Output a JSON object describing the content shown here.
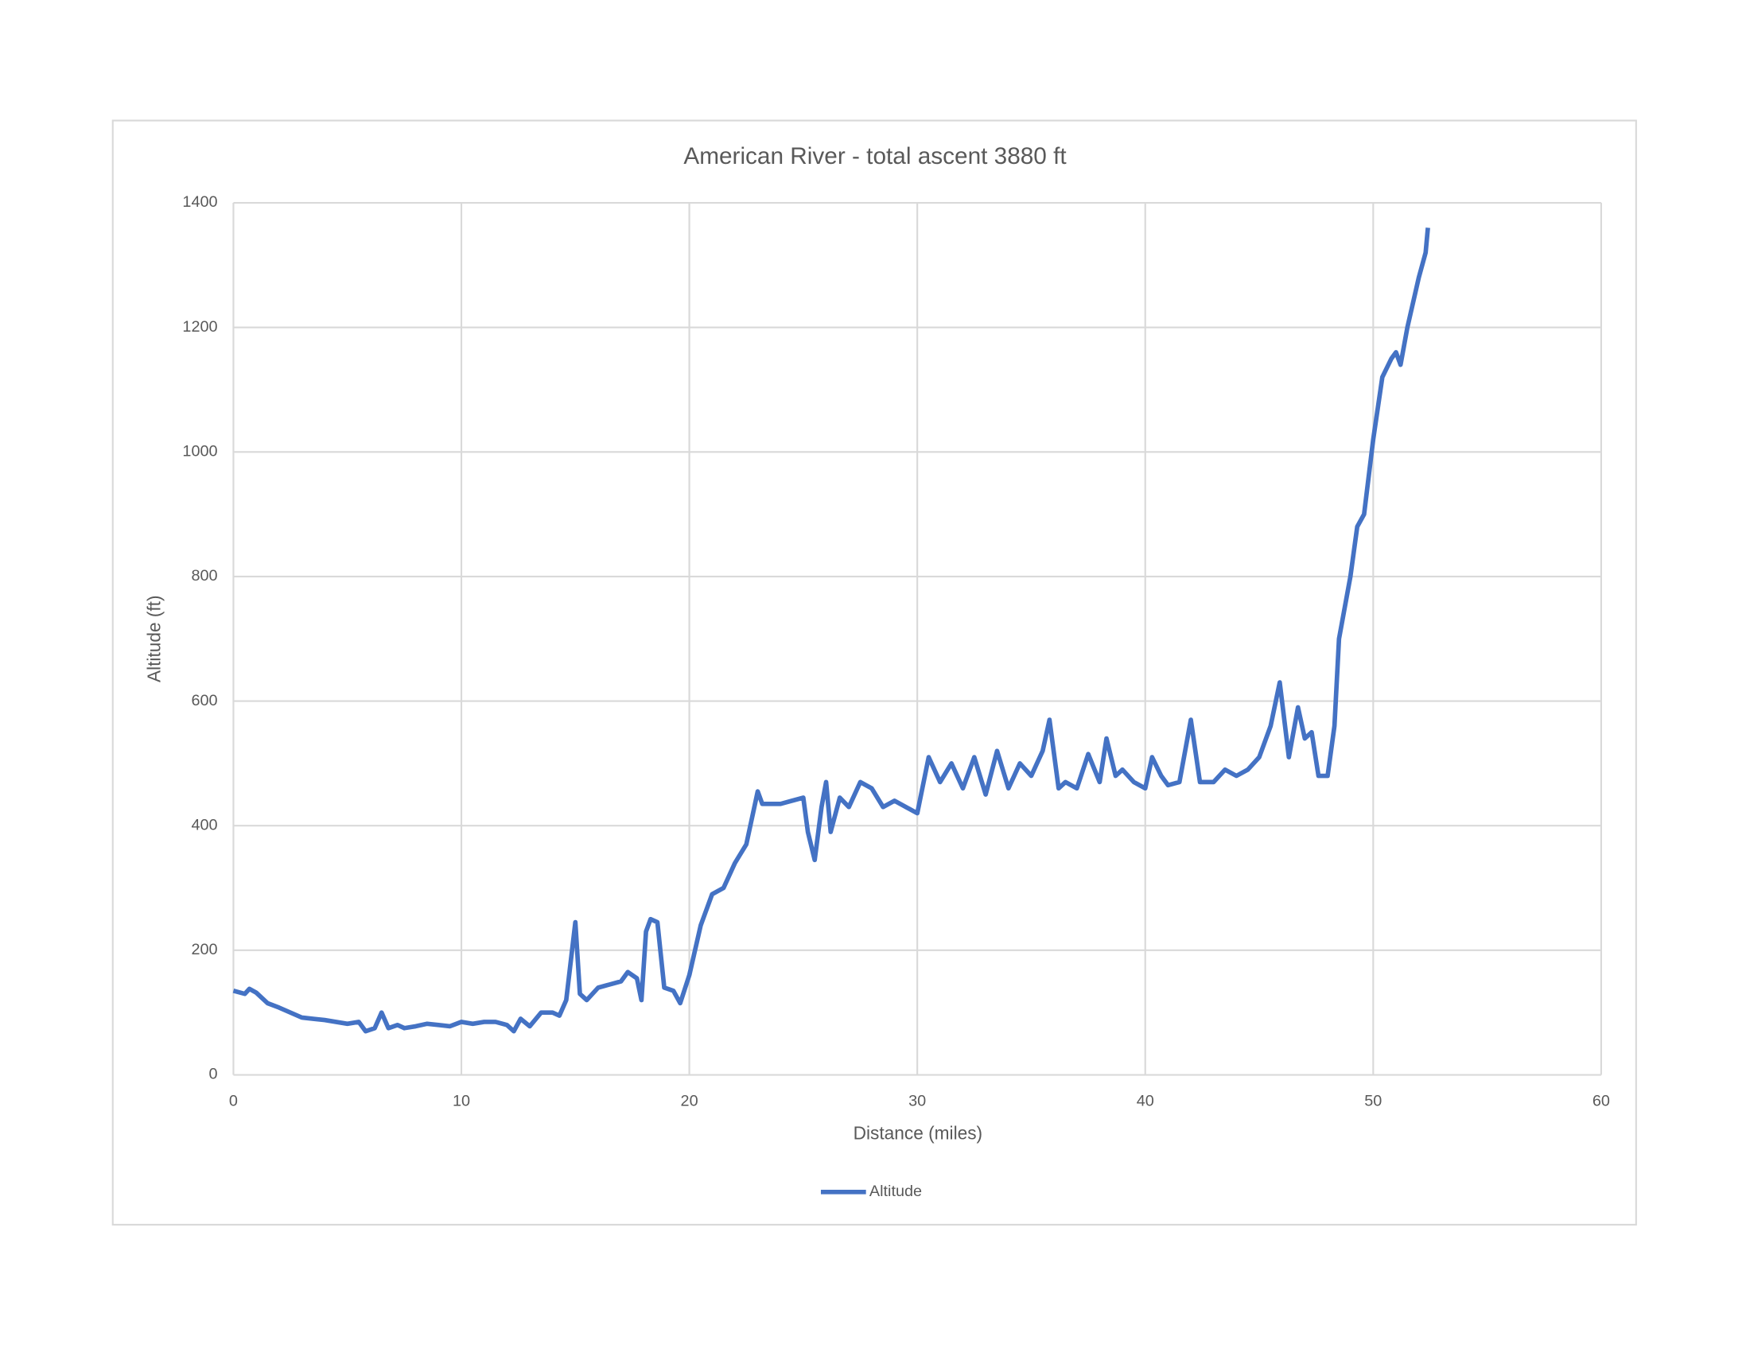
{
  "chart_data": {
    "type": "line",
    "title": "American River - total ascent 3880 ft",
    "x_label": "Distance (miles)",
    "y_label": "Altitude (ft)",
    "xlim": [
      0,
      60
    ],
    "xticks": [
      0,
      10,
      20,
      30,
      40,
      50,
      60
    ],
    "ylim": [
      0,
      1400
    ],
    "yticks": [
      0,
      200,
      400,
      600,
      800,
      1000,
      1200,
      1400
    ],
    "grid": true,
    "legend": "bottom",
    "x": [
      0,
      0.5,
      0.7,
      1,
      1.5,
      2,
      2.5,
      3,
      3.5,
      4,
      4.5,
      5,
      5.5,
      5.8,
      6.2,
      6.5,
      6.8,
      7.2,
      7.5,
      8,
      8.5,
      9,
      9.5,
      10,
      10.5,
      11,
      11.5,
      12,
      12.3,
      12.6,
      13,
      13.5,
      14,
      14.3,
      14.6,
      15,
      15.2,
      15.5,
      16,
      16.5,
      17,
      17.3,
      17.7,
      17.9,
      18.1,
      18.3,
      18.6,
      18.9,
      19.3,
      19.6,
      20,
      20.5,
      21,
      21.5,
      22,
      22.5,
      23,
      23.2,
      24,
      24.5,
      25,
      25.2,
      25.5,
      25.8,
      26,
      26.2,
      26.6,
      27,
      27.5,
      28,
      28.5,
      29,
      29.5,
      30,
      30.5,
      31,
      31.5,
      32,
      32.5,
      33,
      33.5,
      34,
      34.5,
      35,
      35.5,
      35.8,
      36.2,
      36.5,
      37,
      37.5,
      38,
      38.3,
      38.7,
      39,
      39.5,
      40,
      40.3,
      40.7,
      41,
      41.5,
      42,
      42.4,
      43,
      43.5,
      44,
      44.5,
      45,
      45.5,
      45.9,
      46.3,
      46.7,
      47,
      47.3,
      47.6,
      48,
      48.3,
      48.5,
      49,
      49.3,
      49.6,
      50,
      50.4,
      50.8,
      51,
      51.2,
      51.5,
      52,
      52.3,
      52.4
    ],
    "series": [
      {
        "name": "Altitude",
        "color": "#4472c4",
        "values": [
          135,
          130,
          138,
          132,
          115,
          108,
          100,
          92,
          90,
          88,
          85,
          82,
          85,
          70,
          75,
          100,
          75,
          80,
          75,
          78,
          82,
          80,
          78,
          85,
          82,
          85,
          85,
          80,
          70,
          90,
          78,
          100,
          100,
          95,
          120,
          245,
          130,
          120,
          140,
          145,
          150,
          165,
          155,
          120,
          230,
          250,
          245,
          140,
          135,
          115,
          160,
          240,
          290,
          300,
          340,
          370,
          455,
          435,
          435,
          440,
          445,
          390,
          345,
          430,
          470,
          390,
          445,
          430,
          470,
          460,
          430,
          440,
          430,
          420,
          510,
          470,
          500,
          460,
          510,
          450,
          520,
          460,
          500,
          480,
          520,
          570,
          460,
          470,
          460,
          515,
          470,
          540,
          480,
          490,
          470,
          460,
          510,
          480,
          465,
          470,
          570,
          470,
          470,
          490,
          480,
          490,
          510,
          560,
          630,
          510,
          590,
          540,
          550,
          480,
          480,
          560,
          700,
          800,
          880,
          900,
          1020,
          1120,
          1150,
          1160,
          1140,
          1200,
          1280,
          1320,
          1360
        ]
      }
    ]
  }
}
